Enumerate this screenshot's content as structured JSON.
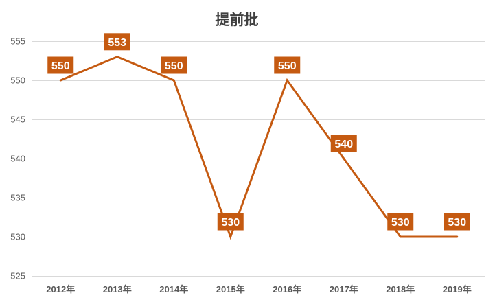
{
  "chart_data": {
    "type": "line",
    "title": "提前批",
    "xlabel": "",
    "ylabel": "",
    "categories": [
      "2012年",
      "2013年",
      "2014年",
      "2015年",
      "2016年",
      "2017年",
      "2018年",
      "2019年"
    ],
    "values": [
      550,
      553,
      550,
      530,
      550,
      540,
      530,
      530
    ],
    "ylim": [
      525,
      555
    ],
    "y_ticks": [
      525,
      530,
      535,
      540,
      545,
      550,
      555
    ],
    "data_labels": true,
    "grid": "horizontal",
    "legend": "none"
  },
  "colors": {
    "line": "#C55A11",
    "label_background": "#C55A11",
    "label_text": "#FFFFFF",
    "title_text": "#404040",
    "axis_text": "#595959",
    "gridline": "#D9D9D9"
  }
}
